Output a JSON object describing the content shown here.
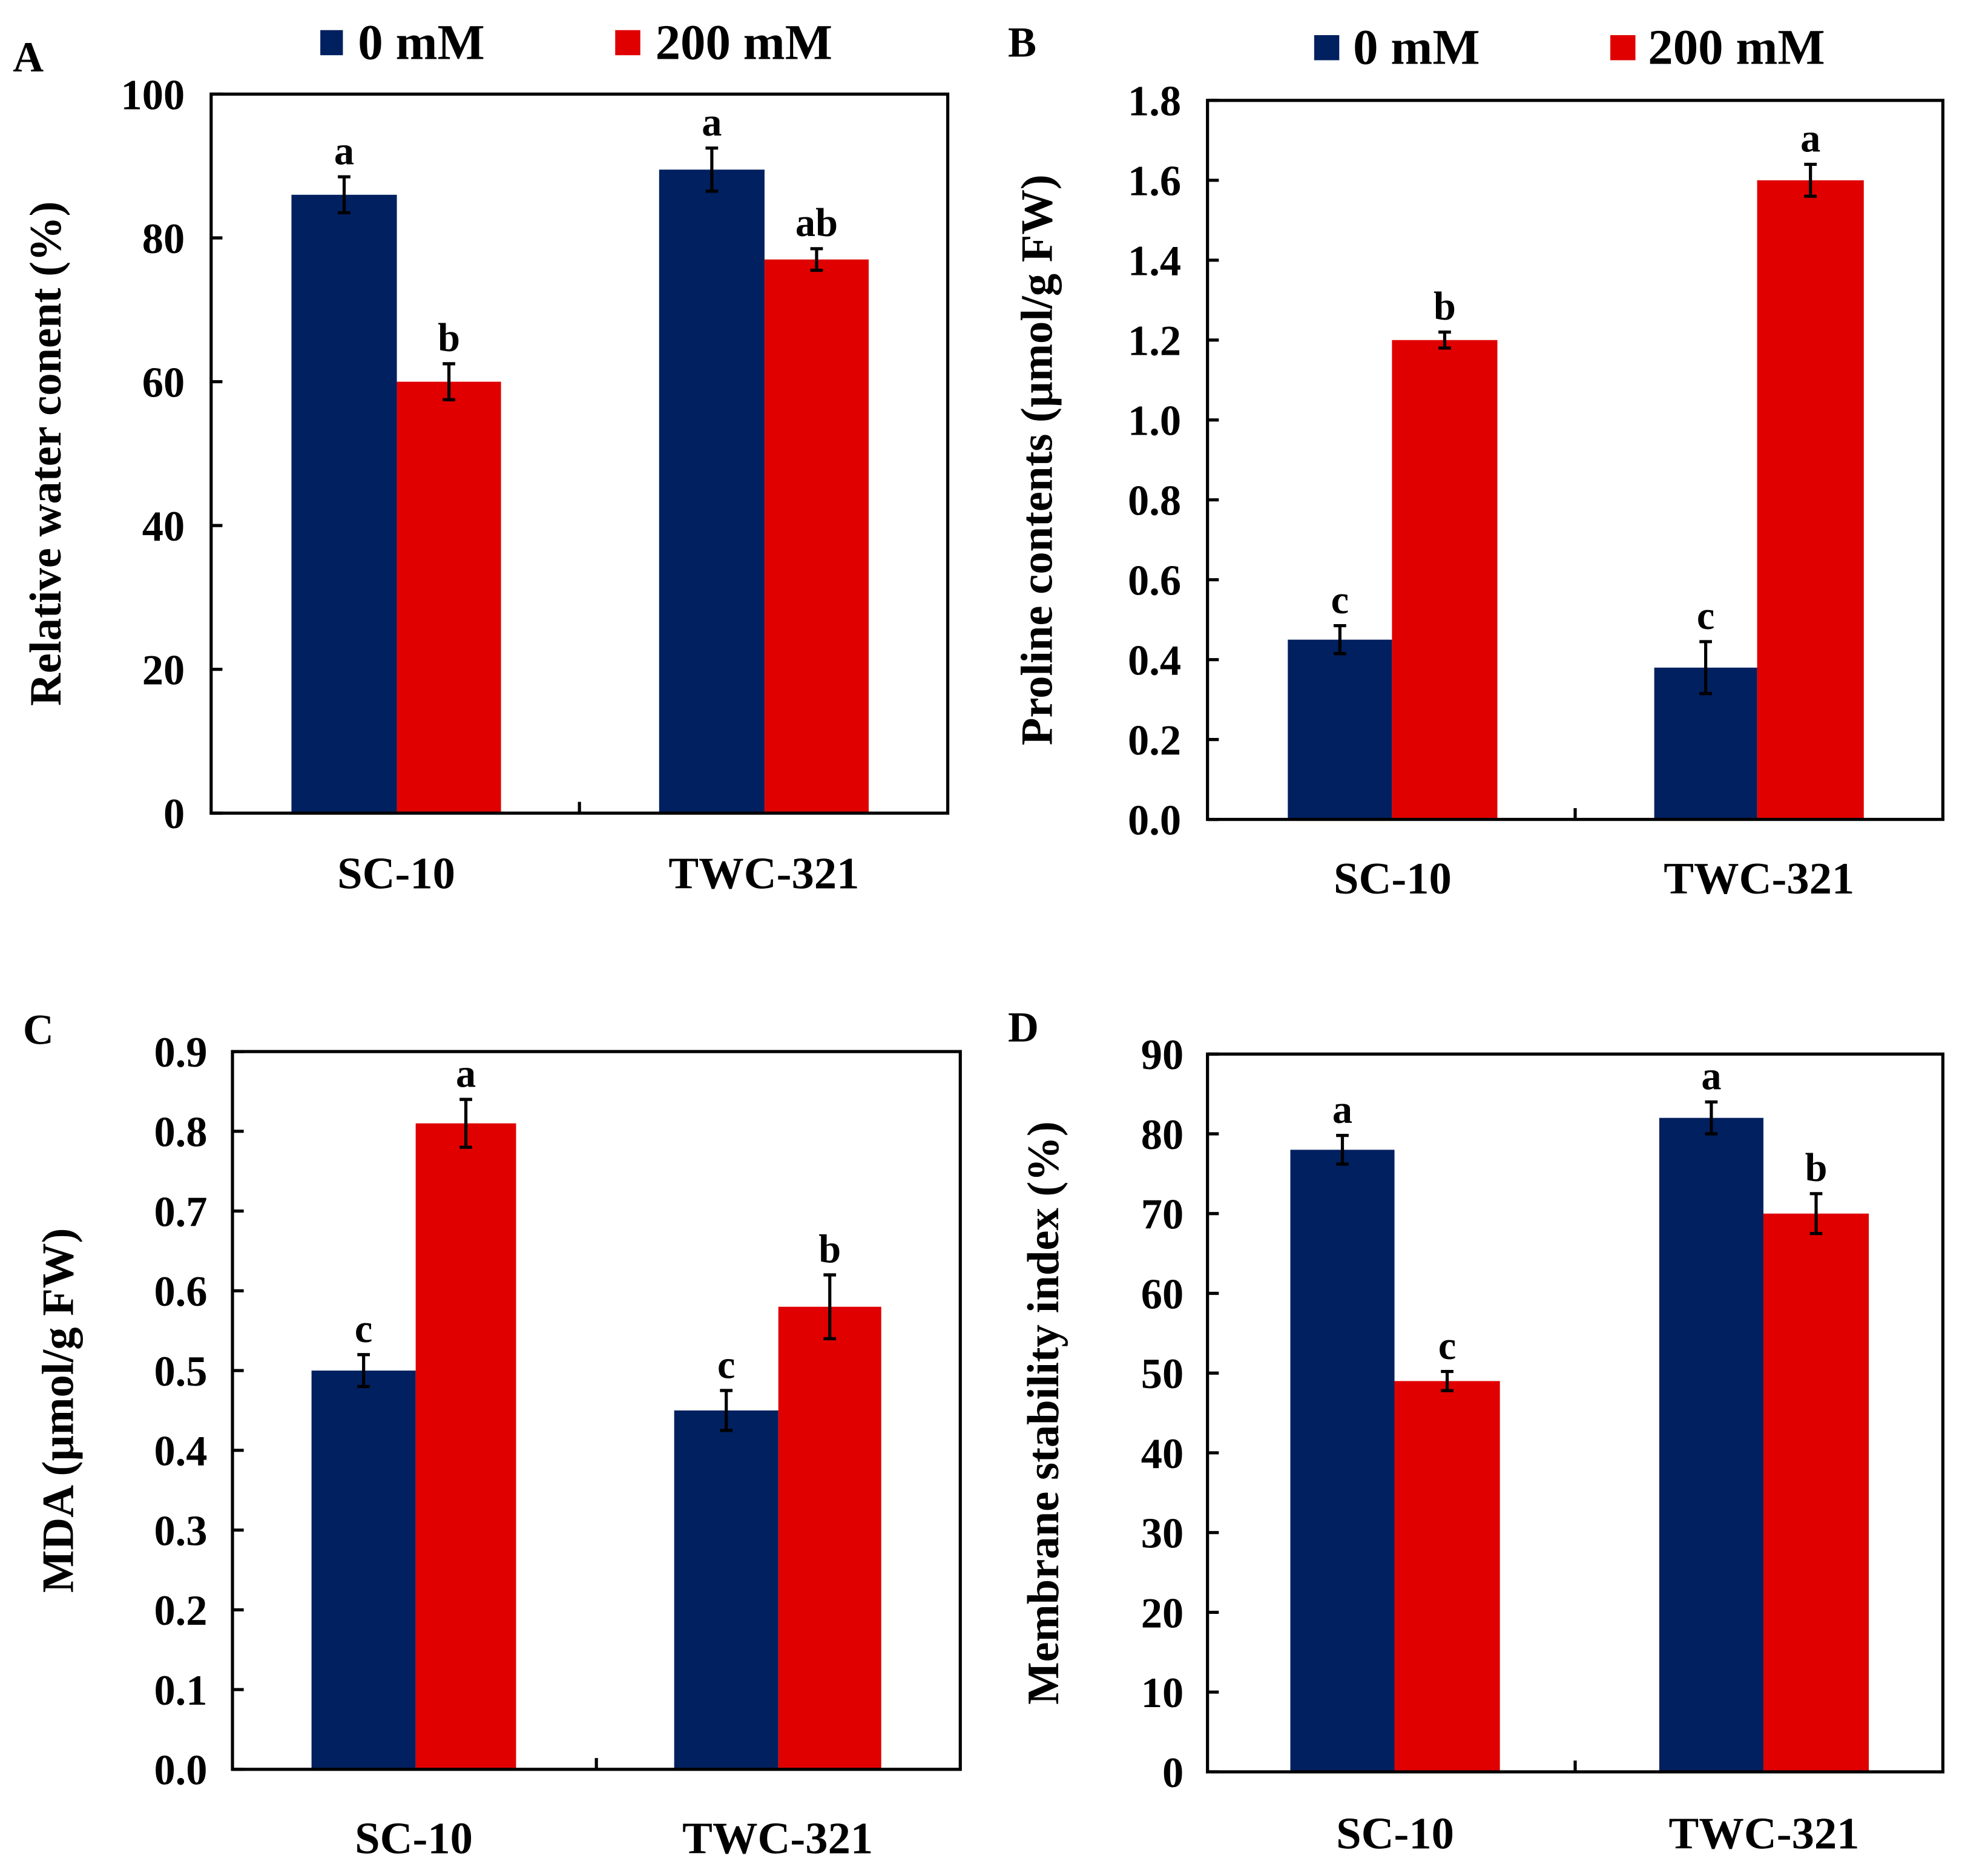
{
  "colors": {
    "series_0mM": "#012060",
    "series_200mM": "#e00000",
    "axis": "#000000"
  },
  "legend": [
    "0 mM",
    "200 mM"
  ],
  "chart_data": [
    {
      "panel": "A",
      "type": "bar",
      "categories": [
        "SC-10",
        "TWC-321"
      ],
      "ylabel": "Relative water conent (%)",
      "ylim": [
        0,
        100
      ],
      "yticks": [
        "0",
        "20",
        "40",
        "60",
        "80",
        "100"
      ],
      "ytick_values": [
        0,
        20,
        40,
        60,
        80,
        100
      ],
      "series": [
        {
          "name": "0 mM",
          "values": [
            86,
            89.5
          ],
          "errors": [
            2.5,
            3
          ],
          "letters": [
            "a",
            "a"
          ]
        },
        {
          "name": "200 mM",
          "values": [
            60,
            77
          ],
          "errors": [
            2.5,
            1.5
          ],
          "letters": [
            "b",
            "ab"
          ]
        }
      ]
    },
    {
      "panel": "B",
      "type": "bar",
      "categories": [
        "SC-10",
        "TWC-321"
      ],
      "ylabel": "Proline contents (µmol/g FW)",
      "ylim": [
        0,
        1.8
      ],
      "yticks": [
        "0.0",
        "0.2",
        "0.4",
        "0.6",
        "0.8",
        "1.0",
        "1.2",
        "1.4",
        "1.6",
        "1.8"
      ],
      "ytick_values": [
        0,
        0.2,
        0.4,
        0.6,
        0.8,
        1.0,
        1.2,
        1.4,
        1.6,
        1.8
      ],
      "series": [
        {
          "name": "0 mM",
          "values": [
            0.45,
            0.38
          ],
          "errors": [
            0.035,
            0.065
          ],
          "letters": [
            "c",
            "c"
          ]
        },
        {
          "name": "200 mM",
          "values": [
            1.2,
            1.6
          ],
          "errors": [
            0.02,
            0.04
          ],
          "letters": [
            "b",
            "a"
          ]
        }
      ]
    },
    {
      "panel": "C",
      "type": "bar",
      "categories": [
        "SC-10",
        "TWC-321"
      ],
      "ylabel": "MDA (µmol/g FW)",
      "ylim": [
        0,
        0.9
      ],
      "yticks": [
        "0.0",
        "0.1",
        "0.2",
        "0.3",
        "0.4",
        "0.5",
        "0.6",
        "0.7",
        "0.8",
        "0.9"
      ],
      "ytick_values": [
        0,
        0.1,
        0.2,
        0.3,
        0.4,
        0.5,
        0.6,
        0.7,
        0.8,
        0.9
      ],
      "series": [
        {
          "name": "0 mM",
          "values": [
            0.5,
            0.45
          ],
          "errors": [
            0.02,
            0.025
          ],
          "letters": [
            "c",
            "c"
          ]
        },
        {
          "name": "200 mM",
          "values": [
            0.81,
            0.58
          ],
          "errors": [
            0.03,
            0.04
          ],
          "letters": [
            "a",
            "b"
          ]
        }
      ]
    },
    {
      "panel": "D",
      "type": "bar",
      "categories": [
        "SC-10",
        "TWC-321"
      ],
      "ylabel": "Membrane stability index (%)",
      "ylim": [
        0,
        90
      ],
      "yticks": [
        "0",
        "10",
        "20",
        "30",
        "40",
        "50",
        "60",
        "70",
        "80",
        "90"
      ],
      "ytick_values": [
        0,
        10,
        20,
        30,
        40,
        50,
        60,
        70,
        80,
        90
      ],
      "series": [
        {
          "name": "0 mM",
          "values": [
            78,
            82
          ],
          "errors": [
            1.8,
            2
          ],
          "letters": [
            "a",
            "a"
          ]
        },
        {
          "name": "200 mM",
          "values": [
            49,
            70
          ],
          "errors": [
            1.2,
            2.5
          ],
          "letters": [
            "c",
            "b"
          ]
        }
      ]
    }
  ]
}
